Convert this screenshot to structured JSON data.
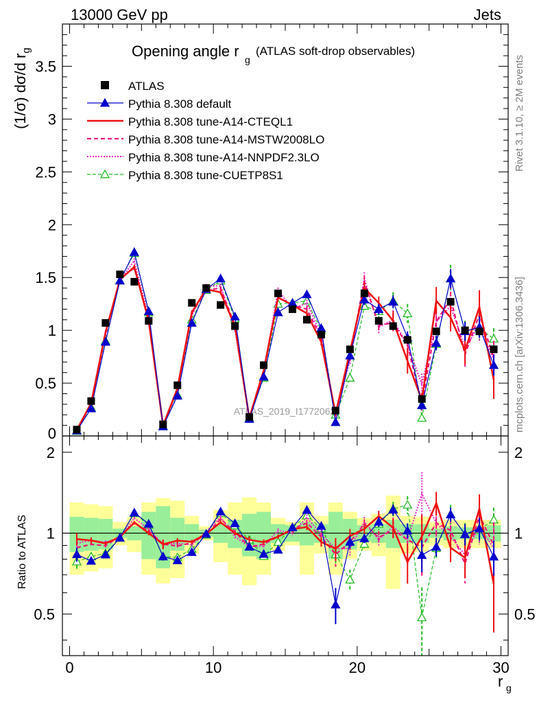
{
  "header": {
    "left": "13000 GeV pp",
    "right": "Jets"
  },
  "side": {
    "rivet": "Rivet 3.1.10, ≥ 2M events",
    "mcplots": "mcplots.cern.ch [arXiv:1306.3436]"
  },
  "watermark": "ATLAS_2019_I1772062",
  "chart_data": {
    "type": "line",
    "title": "Opening angle r_g (ATLAS soft-drop observables)",
    "ylabel": "(1/σ) dσ/d r_g",
    "xlabel": "r_g",
    "ratio_ylabel": "Ratio to ATLAS",
    "xlim": [
      -0.5,
      30.5
    ],
    "ylim": [
      0,
      3.9
    ],
    "ratio_ylim": [
      0.35,
      2.3
    ],
    "x_ticks": [
      0,
      10,
      20,
      30
    ],
    "y_ticks": [
      0.5,
      1,
      1.5,
      2,
      2.5,
      3,
      3.5
    ],
    "ratio_ticks": [
      0.5,
      1,
      2
    ],
    "x": [
      0.5,
      1.5,
      2.5,
      3.5,
      4.5,
      5.5,
      6.5,
      7.5,
      8.5,
      9.5,
      10.5,
      11.5,
      12.5,
      13.5,
      14.5,
      15.5,
      16.5,
      17.5,
      18.5,
      19.5,
      20.5,
      21.5,
      22.5,
      23.5,
      24.5,
      25.5,
      26.5,
      27.5,
      28.5,
      29.5
    ],
    "atlas": {
      "name": "ATLAS",
      "values": [
        0.06,
        0.33,
        1.07,
        1.53,
        1.46,
        1.09,
        0.11,
        0.48,
        1.26,
        1.4,
        1.24,
        1.04,
        0.18,
        0.67,
        1.35,
        1.2,
        1.1,
        0.96,
        0.24,
        0.82,
        1.35,
        1.09,
        1.04,
        0.91,
        0.35,
        0.99,
        1.27,
        1.0,
        0.99,
        0.82
      ],
      "band_inner": [
        0.15,
        0.14,
        0.13,
        0.04,
        0.06,
        0.2,
        0.26,
        0.14,
        0.08,
        0.03,
        0.08,
        0.12,
        0.18,
        0.2,
        0.08,
        0.07,
        0.1,
        0.08,
        0.2,
        0.13,
        0.07,
        0.08,
        0.12,
        0.08,
        0.08,
        0.04,
        0.06,
        0.05,
        0.05,
        0.07
      ],
      "band_outer": [
        0.3,
        0.28,
        0.26,
        0.1,
        0.15,
        0.3,
        0.35,
        0.32,
        0.16,
        0.06,
        0.22,
        0.3,
        0.36,
        0.3,
        0.14,
        0.1,
        0.3,
        0.16,
        0.3,
        0.2,
        0.14,
        0.18,
        0.38,
        0.16,
        0.15,
        0.1,
        0.12,
        0.12,
        0.12,
        0.12
      ]
    },
    "series": [
      {
        "name": "Pythia 8.308 default",
        "color": "#0000cc",
        "dash": "",
        "width": 1.2,
        "marker": "triangle-filled",
        "values": [
          0.05,
          0.26,
          0.89,
          1.47,
          1.74,
          1.18,
          0.09,
          0.38,
          1.07,
          1.39,
          1.49,
          1.13,
          0.16,
          0.56,
          1.17,
          1.26,
          1.34,
          1.02,
          0.13,
          0.76,
          1.29,
          1.2,
          1.27,
          0.93,
          0.29,
          0.88,
          1.49,
          0.99,
          1.03,
          0.67
        ],
        "err": [
          0.003,
          0.007,
          0.013,
          0.02,
          0.02,
          0.02,
          0.003,
          0.01,
          0.02,
          0.02,
          0.02,
          0.02,
          0.005,
          0.015,
          0.025,
          0.03,
          0.03,
          0.03,
          0.02,
          0.04,
          0.05,
          0.05,
          0.06,
          0.06,
          0.04,
          0.07,
          0.09,
          0.09,
          0.1,
          0.1
        ]
      },
      {
        "name": "Pythia 8.308 tune-A14-CTEQL1",
        "color": "#ee1111",
        "dash": "",
        "width": 2.6,
        "marker": "none",
        "values": [
          0.057,
          0.31,
          0.98,
          1.48,
          1.6,
          1.09,
          0.1,
          0.45,
          1.17,
          1.39,
          1.36,
          1.04,
          0.17,
          0.62,
          1.31,
          1.24,
          1.16,
          0.89,
          0.21,
          0.8,
          1.4,
          1.26,
          1.09,
          0.71,
          0.34,
          1.28,
          1.12,
          0.81,
          1.22,
          0.53
        ],
        "err": [
          0.003,
          0.008,
          0.013,
          0.02,
          0.02,
          0.02,
          0.004,
          0.01,
          0.02,
          0.02,
          0.02,
          0.02,
          0.005,
          0.015,
          0.025,
          0.03,
          0.03,
          0.035,
          0.02,
          0.05,
          0.06,
          0.06,
          0.09,
          0.12,
          0.07,
          0.13,
          0.13,
          0.13,
          0.16,
          0.18
        ]
      },
      {
        "name": "Pythia 8.308 tune-A14-MSTW2008LO",
        "color": "#ee1177",
        "dash": "6,4",
        "width": 2.2,
        "marker": "none",
        "values": [
          0.053,
          0.3,
          0.96,
          1.49,
          1.59,
          1.11,
          0.1,
          0.43,
          1.16,
          1.38,
          1.4,
          1.05,
          0.16,
          0.61,
          1.31,
          1.24,
          1.2,
          0.93,
          0.2,
          0.76,
          1.46,
          1.05,
          1.07,
          0.86,
          0.31,
          1.08,
          1.3,
          0.77,
          1.15,
          0.74
        ],
        "err": [
          0.003,
          0.008,
          0.013,
          0.02,
          0.02,
          0.02,
          0.004,
          0.01,
          0.02,
          0.02,
          0.02,
          0.02,
          0.005,
          0.015,
          0.025,
          0.03,
          0.03,
          0.035,
          0.02,
          0.05,
          0.06,
          0.06,
          0.09,
          0.1,
          0.07,
          0.12,
          0.13,
          0.12,
          0.15,
          0.16
        ]
      },
      {
        "name": "Pythia 8.308 tune-A14-NNPDF2.3LO",
        "color": "#ee22cc",
        "dash": "2,2",
        "width": 2.0,
        "marker": "none",
        "values": [
          0.055,
          0.31,
          0.99,
          1.47,
          1.66,
          1.13,
          0.1,
          0.44,
          1.14,
          1.42,
          1.42,
          1.01,
          0.16,
          0.6,
          1.38,
          1.2,
          1.26,
          0.95,
          0.21,
          0.72,
          1.49,
          1.03,
          1.1,
          0.86,
          0.49,
          1.08,
          1.23,
          0.83,
          1.05,
          0.72
        ],
        "err": [
          0.003,
          0.008,
          0.013,
          0.02,
          0.02,
          0.02,
          0.004,
          0.01,
          0.02,
          0.02,
          0.02,
          0.02,
          0.005,
          0.015,
          0.025,
          0.03,
          0.03,
          0.035,
          0.02,
          0.05,
          0.06,
          0.06,
          0.09,
          0.1,
          0.1,
          0.12,
          0.13,
          0.12,
          0.15,
          0.16
        ]
      },
      {
        "name": "Pythia 8.308 tune-CUETP8S1",
        "color": "#22bb22",
        "dash": "5,3",
        "width": 1.2,
        "marker": "triangle-open",
        "values": [
          0.047,
          0.27,
          0.9,
          1.47,
          1.73,
          1.17,
          0.09,
          0.39,
          1.1,
          1.38,
          1.47,
          1.11,
          0.17,
          0.55,
          1.25,
          1.26,
          1.28,
          1.0,
          0.2,
          0.55,
          1.23,
          1.18,
          1.28,
          1.16,
          0.17,
          0.87,
          1.49,
          0.99,
          1.02,
          0.92
        ],
        "err": [
          0.003,
          0.007,
          0.013,
          0.02,
          0.02,
          0.02,
          0.003,
          0.01,
          0.02,
          0.02,
          0.02,
          0.02,
          0.005,
          0.015,
          0.025,
          0.03,
          0.03,
          0.03,
          0.02,
          0.05,
          0.05,
          0.06,
          0.08,
          0.09,
          0.05,
          0.08,
          0.13,
          0.1,
          0.11,
          0.1
        ]
      }
    ]
  }
}
